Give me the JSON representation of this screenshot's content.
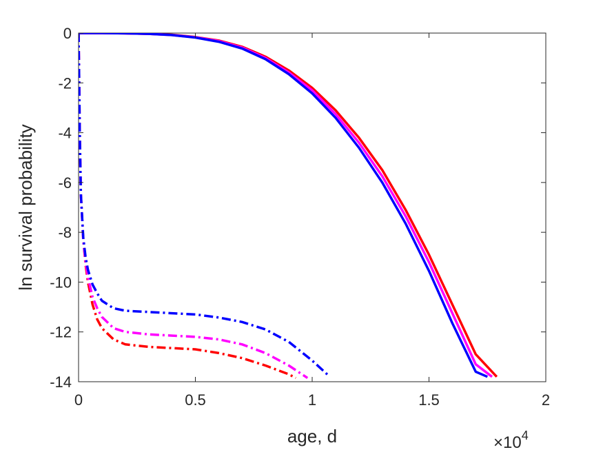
{
  "chart_data": {
    "type": "line",
    "title": "",
    "xlabel": "age, d",
    "ylabel": "ln survival probability",
    "xlim": [
      0,
      20000
    ],
    "ylim": [
      -14,
      0
    ],
    "x_tick_labels": [
      "0",
      "0.5",
      "1",
      "1.5",
      "2"
    ],
    "x_tick_values": [
      0,
      5000,
      10000,
      15000,
      20000
    ],
    "x_exponent": {
      "base": "×10",
      "power": "4"
    },
    "y_tick_labels": [
      "0",
      "-2",
      "-4",
      "-6",
      "-8",
      "-10",
      "-12",
      "-14"
    ],
    "y_tick_values": [
      0,
      -2,
      -4,
      -6,
      -8,
      -10,
      -12,
      -14
    ],
    "grid": false,
    "series": [
      {
        "color": "#ff0000",
        "dash": "solid",
        "x": [
          0,
          50,
          500,
          1000,
          2000,
          3000,
          4000,
          5000,
          6000,
          7000,
          8000,
          9000,
          10000,
          11000,
          12000,
          13000,
          14000,
          15000,
          16000,
          17000,
          17900
        ],
        "y": [
          -0.02,
          0,
          0,
          0,
          -0.01,
          -0.03,
          -0.07,
          -0.16,
          -0.3,
          -0.55,
          -0.95,
          -1.5,
          -2.2,
          -3.1,
          -4.2,
          -5.5,
          -7.1,
          -8.9,
          -10.9,
          -12.9,
          -13.8
        ]
      },
      {
        "color": "#ff00ff",
        "dash": "solid",
        "x": [
          0,
          50,
          500,
          1000,
          2000,
          3000,
          4000,
          5000,
          6000,
          7000,
          8000,
          9000,
          10000,
          11000,
          12000,
          13000,
          14000,
          15000,
          16000,
          17000,
          17700
        ],
        "y": [
          -0.02,
          0,
          0,
          0,
          -0.01,
          -0.03,
          -0.08,
          -0.17,
          -0.32,
          -0.58,
          -1.0,
          -1.58,
          -2.3,
          -3.25,
          -4.4,
          -5.75,
          -7.35,
          -9.2,
          -11.25,
          -13.3,
          -13.8
        ]
      },
      {
        "color": "#0000ff",
        "dash": "solid",
        "x": [
          0,
          50,
          500,
          1000,
          2000,
          3000,
          4000,
          5000,
          6000,
          7000,
          8000,
          9000,
          10000,
          11000,
          12000,
          13000,
          14000,
          15000,
          16000,
          17000,
          17500
        ],
        "y": [
          -0.02,
          0,
          0,
          0,
          -0.01,
          -0.03,
          -0.08,
          -0.18,
          -0.35,
          -0.62,
          -1.05,
          -1.65,
          -2.42,
          -3.4,
          -4.6,
          -6.0,
          -7.65,
          -9.55,
          -11.65,
          -13.6,
          -13.8
        ]
      },
      {
        "color": "#ff0000",
        "dash": "dashdot",
        "x": [
          0,
          20,
          50,
          100,
          200,
          300,
          400,
          600,
          800,
          1000,
          1500,
          2000,
          3000,
          4000,
          5000,
          6000,
          7000,
          8000,
          9000,
          9300
        ],
        "y": [
          0,
          -1.5,
          -4.0,
          -6.5,
          -8.3,
          -9.3,
          -10.0,
          -10.9,
          -11.5,
          -11.85,
          -12.3,
          -12.5,
          -12.6,
          -12.65,
          -12.7,
          -12.85,
          -13.05,
          -13.35,
          -13.7,
          -13.85
        ]
      },
      {
        "color": "#ff00ff",
        "dash": "dashdot",
        "x": [
          0,
          20,
          50,
          100,
          200,
          300,
          400,
          600,
          800,
          1000,
          1500,
          2000,
          3000,
          4000,
          5000,
          6000,
          7000,
          8000,
          9000,
          9800
        ],
        "y": [
          0,
          -1.5,
          -4.0,
          -6.5,
          -8.3,
          -9.2,
          -9.8,
          -10.6,
          -11.05,
          -11.4,
          -11.85,
          -12.0,
          -12.1,
          -12.15,
          -12.2,
          -12.3,
          -12.5,
          -12.85,
          -13.35,
          -13.85
        ]
      },
      {
        "color": "#0000ff",
        "dash": "dashdot",
        "x": [
          0,
          20,
          50,
          100,
          200,
          300,
          400,
          600,
          800,
          1000,
          1500,
          2000,
          3000,
          4000,
          5000,
          6000,
          7000,
          8000,
          9000,
          10000,
          10700
        ],
        "y": [
          0,
          -1.5,
          -4.0,
          -6.5,
          -8.2,
          -9.0,
          -9.5,
          -10.1,
          -10.45,
          -10.75,
          -11.05,
          -11.15,
          -11.2,
          -11.25,
          -11.3,
          -11.42,
          -11.6,
          -11.9,
          -12.4,
          -13.15,
          -13.75
        ]
      }
    ]
  }
}
